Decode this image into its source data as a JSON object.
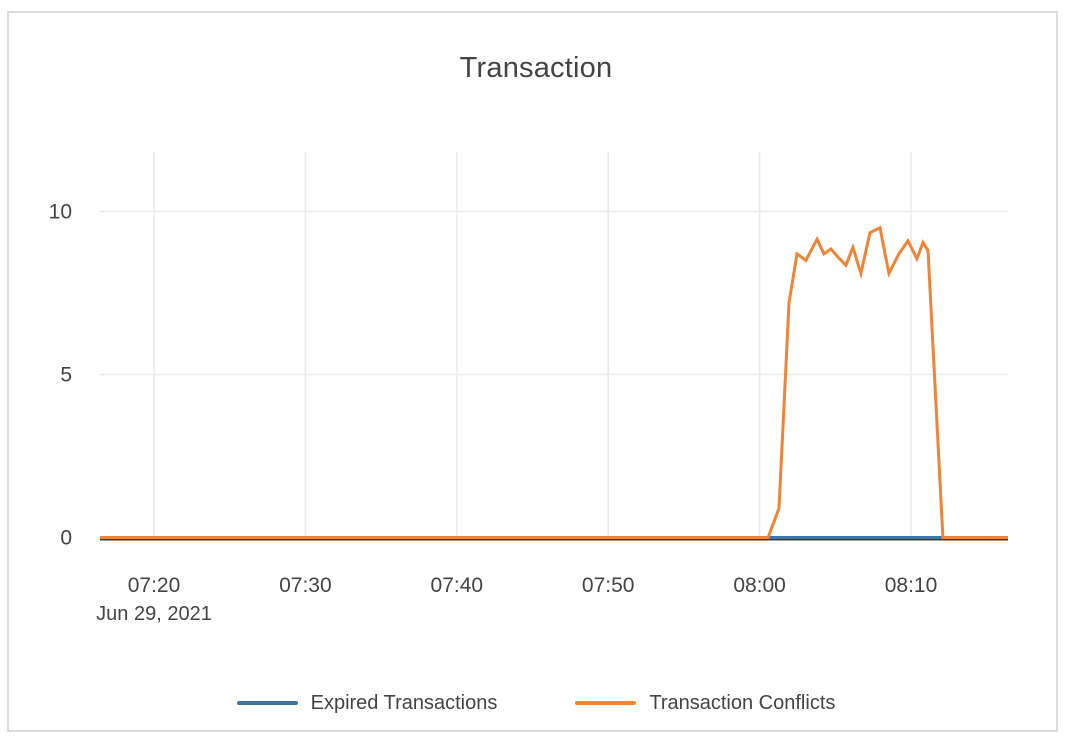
{
  "chart_data": {
    "type": "line",
    "title": "Transaction",
    "x_axis": {
      "date_label": "Jun 29, 2021",
      "unit": "time of day, encoded as minutes after 07:00",
      "ticks": [
        {
          "label": "07:20",
          "t": 20
        },
        {
          "label": "07:30",
          "t": 30
        },
        {
          "label": "07:40",
          "t": 40
        },
        {
          "label": "07:50",
          "t": 50
        },
        {
          "label": "08:00",
          "t": 60
        },
        {
          "label": "08:10",
          "t": 70
        }
      ],
      "range": [
        16.43,
        76.4
      ]
    },
    "y_axis": {
      "ticks": [
        0,
        5,
        10
      ],
      "range": [
        0,
        11.8
      ]
    },
    "grid": true,
    "legend_position": "bottom-center",
    "colors": {
      "grid": "#ebebeb",
      "axis_line": "#3d3d3d",
      "text": "#444444",
      "card_border": "#dcdcdc",
      "background": "#ffffff"
    },
    "series": [
      {
        "name": "Expired Transactions",
        "color": "#3b76a8",
        "points": [
          [
            16.43,
            0
          ],
          [
            76.4,
            0
          ]
        ]
      },
      {
        "name": "Transaction Conflicts",
        "color": "#ee8438",
        "points": [
          [
            16.43,
            0
          ],
          [
            60.56,
            0
          ],
          [
            61.28,
            0.9
          ],
          [
            61.94,
            7.2
          ],
          [
            62.47,
            8.7
          ],
          [
            63.06,
            8.5
          ],
          [
            63.79,
            9.15
          ],
          [
            64.25,
            8.7
          ],
          [
            64.71,
            8.85
          ],
          [
            65.18,
            8.6
          ],
          [
            65.7,
            8.35
          ],
          [
            66.16,
            8.9
          ],
          [
            66.69,
            8.1
          ],
          [
            67.29,
            9.35
          ],
          [
            67.95,
            9.5
          ],
          [
            68.54,
            8.1
          ],
          [
            69.2,
            8.7
          ],
          [
            69.8,
            9.1
          ],
          [
            70.39,
            8.55
          ],
          [
            70.79,
            9.05
          ],
          [
            71.12,
            8.8
          ],
          [
            72.11,
            0
          ],
          [
            76.4,
            0
          ]
        ]
      }
    ]
  }
}
